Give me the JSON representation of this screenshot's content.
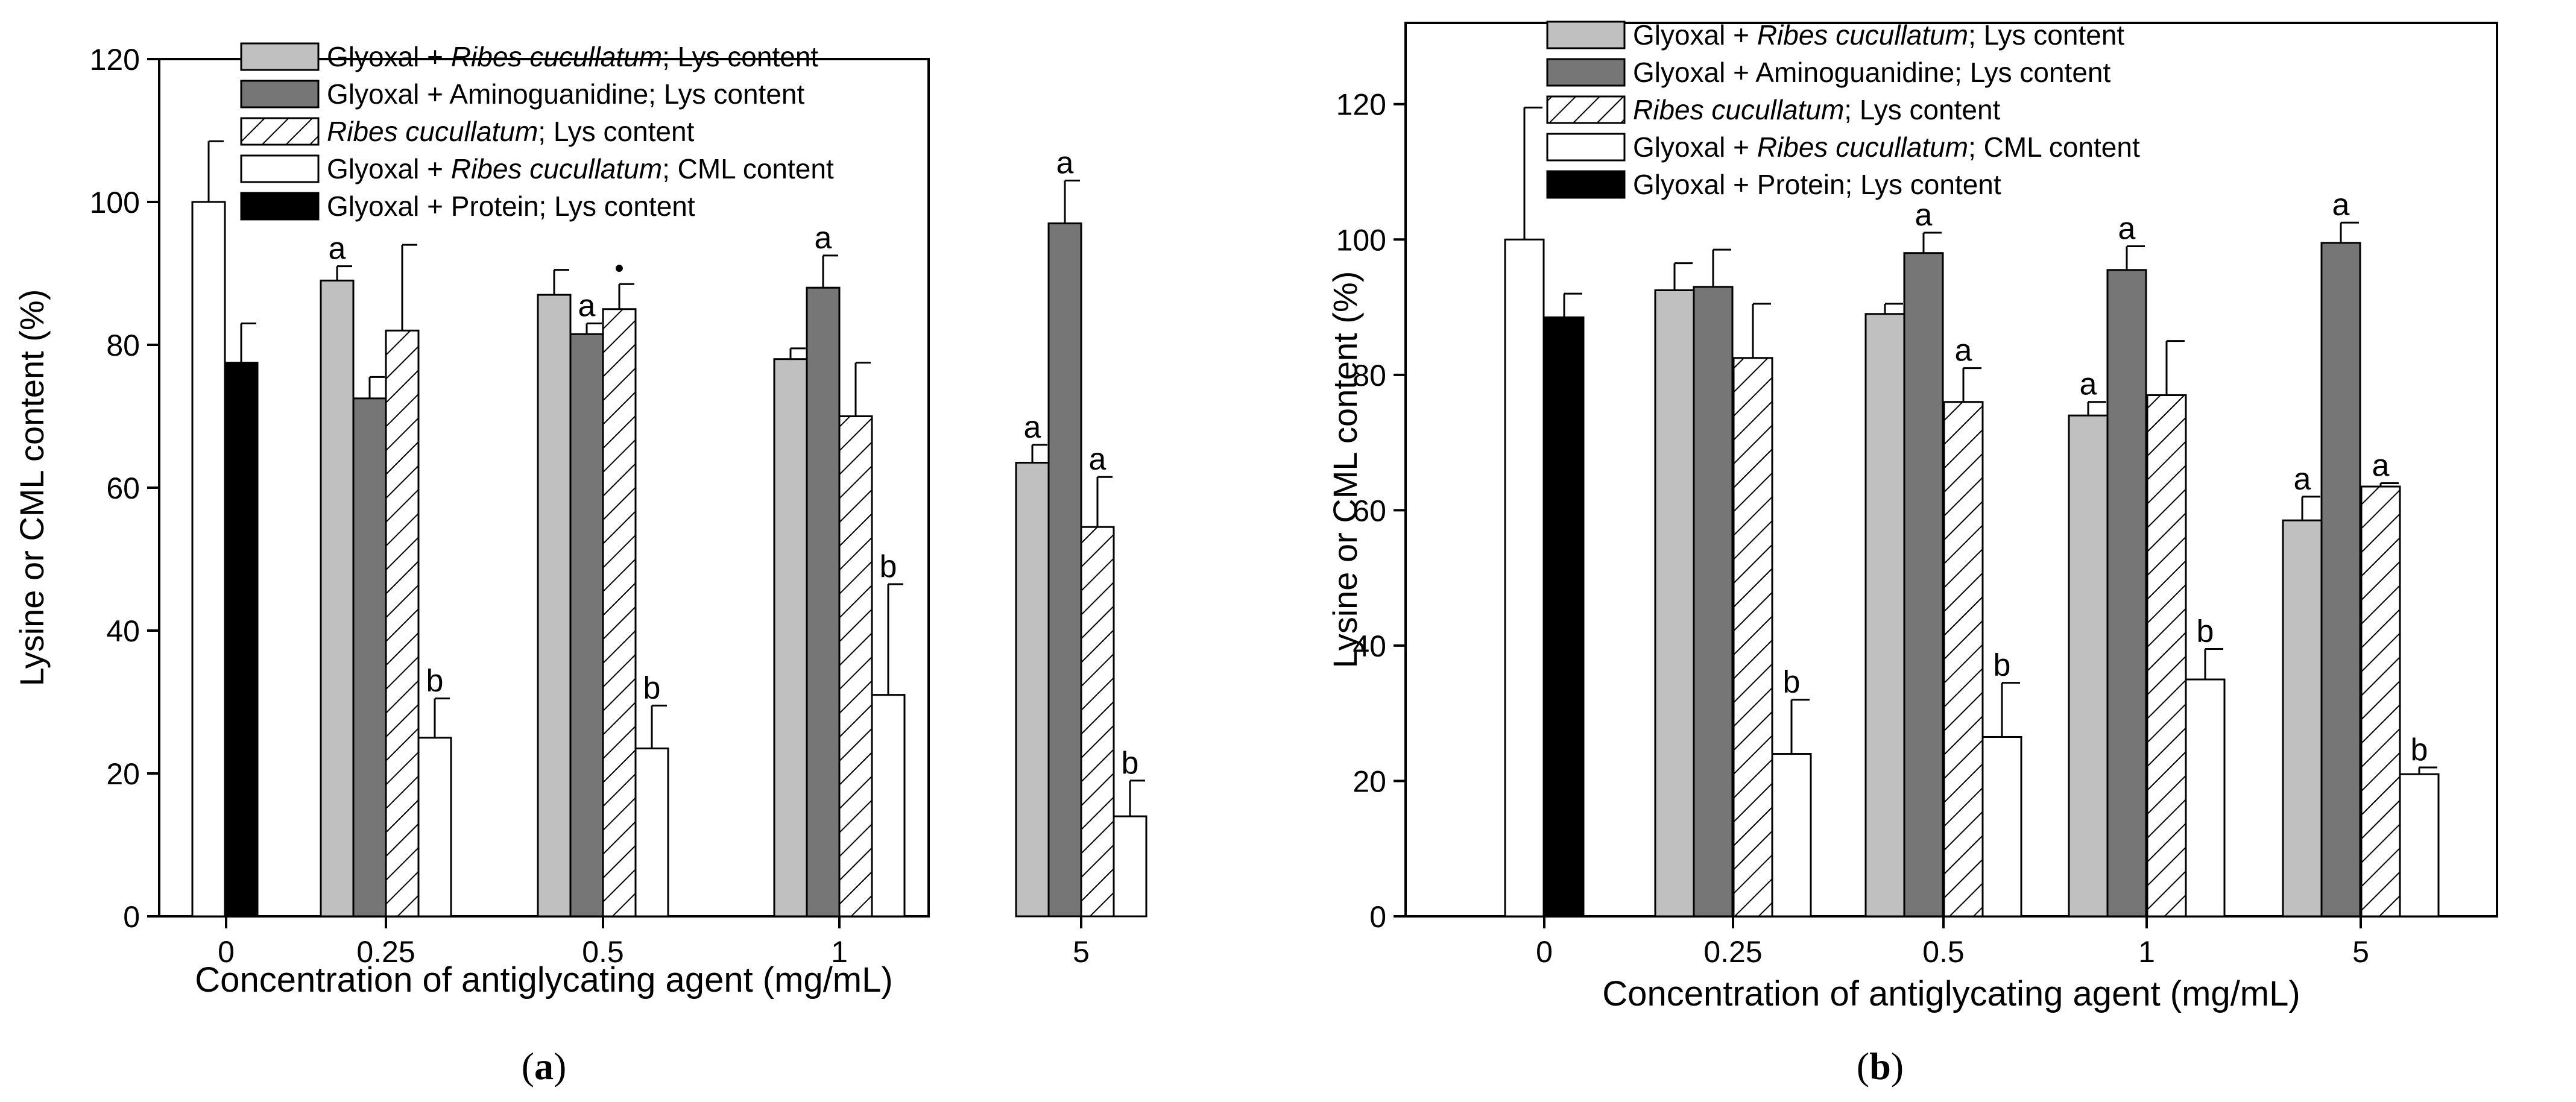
{
  "chart_data": [
    {
      "id": "a",
      "type": "bar",
      "panel_label": "a",
      "xlabel": "Concentration of antiglycating agent (mg/mL)",
      "ylabel": "Lysine or CML content (%)",
      "ylim": [
        0,
        120
      ],
      "yticks": [
        0,
        20,
        40,
        60,
        80,
        100,
        120
      ],
      "categories": [
        "0",
        "0.25",
        "0.5",
        "1",
        "5"
      ],
      "legend_position": "top-center",
      "legend": [
        {
          "series": "s1",
          "parts": [
            {
              "t": "Glyoxal + ",
              "i": false
            },
            {
              "t": "Ribes cucullatum",
              "i": true
            },
            {
              "t": "; Lys content",
              "i": false
            }
          ]
        },
        {
          "series": "s2",
          "parts": [
            {
              "t": "Glyoxal + Aminoguanidine; Lys content",
              "i": false
            }
          ]
        },
        {
          "series": "s3",
          "parts": [
            {
              "t": "Ribes cucullatum",
              "i": true
            },
            {
              "t": "; Lys content",
              "i": false
            }
          ]
        },
        {
          "series": "s4",
          "parts": [
            {
              "t": "Glyoxal + ",
              "i": false
            },
            {
              "t": "Ribes cucullatum",
              "i": true
            },
            {
              "t": "; CML content",
              "i": false
            }
          ]
        },
        {
          "series": "s5",
          "parts": [
            {
              "t": "Glyoxal + Protein; Lys content",
              "i": false
            }
          ]
        }
      ],
      "series": [
        {
          "key": "s1",
          "name": "Glyoxal + Ribes cucullatum; Lys content",
          "style": "light",
          "values": [
            null,
            89,
            87,
            78,
            63.5
          ],
          "errors": [
            null,
            2,
            3.5,
            1.5,
            2.5
          ],
          "labels": [
            null,
            "a",
            null,
            null,
            "a"
          ]
        },
        {
          "key": "s2",
          "name": "Glyoxal + Aminoguanidine; Lys content",
          "style": "dark",
          "values": [
            null,
            72.5,
            81.5,
            88,
            97
          ],
          "errors": [
            null,
            3,
            1.5,
            4.5,
            6
          ],
          "labels": [
            null,
            null,
            "a",
            "a",
            "a"
          ]
        },
        {
          "key": "s3",
          "name": "Ribes cucullatum; Lys content",
          "style": "hatch",
          "values": [
            null,
            82,
            85,
            70,
            54.5
          ],
          "errors": [
            null,
            12,
            3.5,
            7.5,
            7
          ],
          "labels": [
            null,
            null,
            "•",
            null,
            "a"
          ]
        },
        {
          "key": "s4",
          "name": "Glyoxal + Ribes cucullatum; CML content",
          "style": "white",
          "values": [
            100,
            25,
            23.5,
            31,
            14
          ],
          "errors": [
            8.5,
            5.5,
            6,
            15.5,
            5
          ],
          "labels": [
            null,
            "b",
            "b",
            "b",
            "b"
          ]
        },
        {
          "key": "s5",
          "name": "Glyoxal + Protein; Lys content",
          "style": "black",
          "values": [
            77.5,
            null,
            null,
            null,
            null
          ],
          "errors": [
            5.5,
            null,
            null,
            null,
            null
          ],
          "labels": [
            null,
            null,
            null,
            null,
            null
          ]
        }
      ]
    },
    {
      "id": "b",
      "type": "bar",
      "panel_label": "b",
      "xlabel": "Concentration of antiglycating agent (mg/mL)",
      "ylabel": "Lysine or CML content (%)",
      "ylim": [
        0,
        132
      ],
      "yticks": [
        0,
        20,
        40,
        60,
        80,
        100,
        120
      ],
      "categories": [
        "0",
        "0.25",
        "0.5",
        "1",
        "5"
      ],
      "legend_position": "top-center",
      "legend": [
        {
          "series": "s1",
          "parts": [
            {
              "t": "Glyoxal + ",
              "i": false
            },
            {
              "t": "Ribes cucullatum",
              "i": true
            },
            {
              "t": "; Lys content",
              "i": false
            }
          ]
        },
        {
          "series": "s2",
          "parts": [
            {
              "t": "Glyoxal + Aminoguanidine; Lys content",
              "i": false
            }
          ]
        },
        {
          "series": "s3",
          "parts": [
            {
              "t": "Ribes cucullatum",
              "i": true
            },
            {
              "t": "; Lys content",
              "i": false
            }
          ]
        },
        {
          "series": "s4",
          "parts": [
            {
              "t": "Glyoxal + ",
              "i": false
            },
            {
              "t": "Ribes cucullatum",
              "i": true
            },
            {
              "t": "; CML content",
              "i": false
            }
          ]
        },
        {
          "series": "s5",
          "parts": [
            {
              "t": "Glyoxal + Protein; Lys content",
              "i": false
            }
          ]
        }
      ],
      "series": [
        {
          "key": "s1",
          "name": "Glyoxal + Ribes cucullatum; Lys content",
          "style": "light",
          "values": [
            null,
            92.5,
            89,
            74,
            58.5
          ],
          "errors": [
            null,
            4,
            1.5,
            2,
            3.5
          ],
          "labels": [
            null,
            null,
            null,
            "a",
            "a"
          ]
        },
        {
          "key": "s2",
          "name": "Glyoxal + Aminoguanidine; Lys content",
          "style": "dark",
          "values": [
            null,
            93,
            98,
            95.5,
            99.5
          ],
          "errors": [
            null,
            5.5,
            3,
            3.5,
            3
          ],
          "labels": [
            null,
            null,
            "a",
            "a",
            "a"
          ]
        },
        {
          "key": "s3",
          "name": "Ribes cucullatum; Lys content",
          "style": "hatch",
          "values": [
            null,
            82.5,
            76,
            77,
            63.5
          ],
          "errors": [
            null,
            8,
            5,
            8,
            0.5
          ],
          "labels": [
            null,
            null,
            "a",
            null,
            "a"
          ]
        },
        {
          "key": "s4",
          "name": "Glyoxal + Ribes cucullatum; CML content",
          "style": "white",
          "values": [
            100,
            24,
            26.5,
            35,
            21
          ],
          "errors": [
            19.5,
            8,
            8,
            4.5,
            1
          ],
          "labels": [
            null,
            "b",
            "b",
            "b",
            "b"
          ]
        },
        {
          "key": "s5",
          "name": "Glyoxal + Protein; Lys content",
          "style": "black",
          "values": [
            88.5,
            null,
            null,
            null,
            null
          ],
          "errors": [
            3.5,
            null,
            null,
            null,
            null
          ],
          "labels": [
            null,
            null,
            null,
            null,
            null
          ]
        }
      ]
    }
  ],
  "colors": {
    "light": "#c0c0c0",
    "dark": "#767676",
    "white": "#ffffff",
    "black": "#000000",
    "hatch_bg": "#ffffff",
    "stroke": "#000000"
  }
}
